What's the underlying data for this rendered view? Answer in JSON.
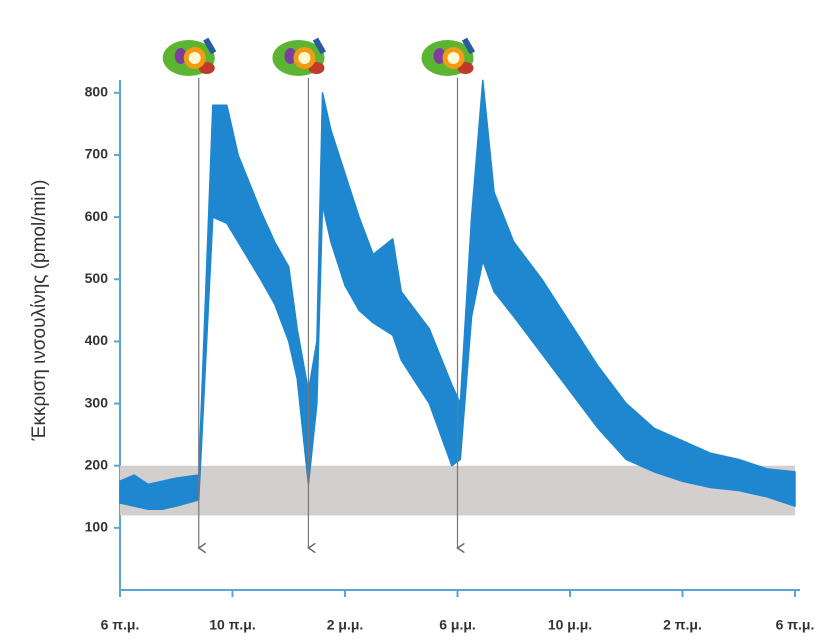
{
  "chart_data": {
    "type": "band",
    "y_label": "Έκκριση ινσουλίνης (pmol/min)",
    "x": [
      6,
      6.5,
      7,
      7.5,
      8,
      8.8,
      9.3,
      9.8,
      10.2,
      11,
      11.5,
      12,
      12.3,
      12.7,
      13,
      13.2,
      13.5,
      14,
      14.5,
      15,
      15.7,
      16,
      17,
      17.8,
      18.1,
      18.5,
      18.9,
      19.3,
      20,
      21,
      22,
      23,
      24,
      25,
      26,
      27,
      28,
      29,
      30
    ],
    "low": [
      140,
      135,
      130,
      130,
      135,
      145,
      600,
      590,
      560,
      500,
      460,
      400,
      340,
      170,
      300,
      620,
      560,
      490,
      450,
      430,
      410,
      370,
      300,
      200,
      210,
      440,
      530,
      480,
      440,
      380,
      320,
      260,
      210,
      190,
      175,
      165,
      160,
      150,
      135
    ],
    "high": [
      175,
      185,
      170,
      175,
      180,
      185,
      780,
      780,
      700,
      610,
      560,
      520,
      420,
      320,
      400,
      800,
      740,
      670,
      600,
      540,
      565,
      480,
      420,
      330,
      300,
      600,
      820,
      640,
      560,
      500,
      430,
      360,
      300,
      260,
      240,
      220,
      210,
      195,
      190
    ],
    "color": "#1e87cf",
    "reference_range": [
      120,
      200
    ],
    "reference_color": "#d3cfcf",
    "meals": [
      8.8,
      12.7,
      18.0
    ],
    "xlim": [
      6,
      30
    ],
    "ylim": [
      0,
      820
    ],
    "yticks": [
      100,
      200,
      300,
      400,
      500,
      600,
      700,
      800
    ],
    "xticks": [
      {
        "value": 6,
        "label": "6 π.μ."
      },
      {
        "value": 10,
        "label": "10 π.μ."
      },
      {
        "value": 14,
        "label": "2 μ.μ."
      },
      {
        "value": 18,
        "label": "6 μ.μ."
      },
      {
        "value": 22,
        "label": "10 μ.μ."
      },
      {
        "value": 26,
        "label": "2 π.μ."
      },
      {
        "value": 30,
        "label": "6 π.μ."
      }
    ]
  }
}
